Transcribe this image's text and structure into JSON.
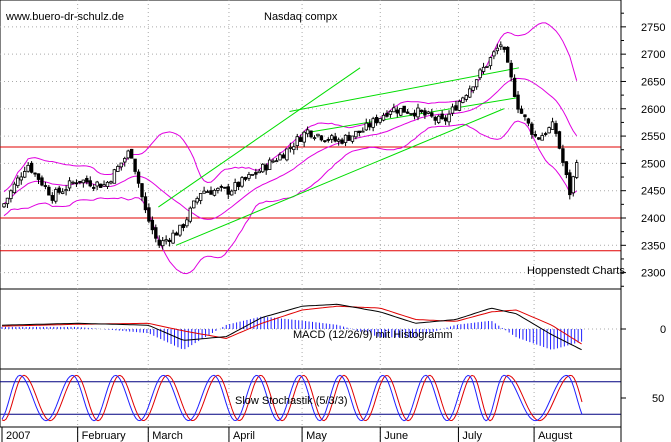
{
  "watermark": "www.buero-dr-schulz.de",
  "title": "Nasdaq compx",
  "source": "Hoppenstedt Charts",
  "macd_label": "MACD (12/26/9) mit Histogramm",
  "stoch_label": "Slow Stochastik (5/3/3)",
  "colors": {
    "candle": "#000000",
    "bollinger": "#e000e0",
    "trendline": "#00dd00",
    "support": "#e00000",
    "macd": "#000000",
    "signal": "#e00000",
    "histogram": "#2020ff",
    "stoch_k": "#2020ff",
    "stoch_d": "#e00000",
    "grid": "#aaaaaa"
  },
  "chart_data": [
    {
      "type": "candlestick",
      "title": "Nasdaq compx",
      "x_labels": [
        "2007",
        "February",
        "March",
        "April",
        "May",
        "June",
        "July",
        "August"
      ],
      "y_ticks": [
        2300,
        2350,
        2400,
        2450,
        2500,
        2550,
        2600,
        2650,
        2700,
        2750
      ],
      "ylim": [
        2270,
        2790
      ],
      "horizontal_lines": [
        2530,
        2400,
        2340
      ],
      "trend_channels": [
        {
          "from": [
            "2007-03-05",
            2420
          ],
          "to": [
            "2007-05-24",
            2675
          ]
        },
        {
          "from": [
            "2007-03-12",
            2350
          ],
          "to": [
            "2007-07-20",
            2600
          ]
        },
        {
          "from": [
            "2007-04-26",
            2595
          ],
          "to": [
            "2007-07-26",
            2675
          ]
        },
        {
          "from": [
            "2007-05-01",
            2555
          ],
          "to": [
            "2007-07-25",
            2620
          ]
        }
      ],
      "series": [
        {
          "date": "2007-01-02",
          "close": 2420
        },
        {
          "date": "2007-01-12",
          "close": 2500
        },
        {
          "date": "2007-01-22",
          "close": 2440
        },
        {
          "date": "2007-02-01",
          "close": 2470
        },
        {
          "date": "2007-02-12",
          "close": 2460
        },
        {
          "date": "2007-02-22",
          "close": 2525
        },
        {
          "date": "2007-02-28",
          "close": 2410
        },
        {
          "date": "2007-03-05",
          "close": 2350
        },
        {
          "date": "2007-03-14",
          "close": 2380
        },
        {
          "date": "2007-03-22",
          "close": 2450
        },
        {
          "date": "2007-04-02",
          "close": 2450
        },
        {
          "date": "2007-04-12",
          "close": 2480
        },
        {
          "date": "2007-04-24",
          "close": 2520
        },
        {
          "date": "2007-05-03",
          "close": 2560
        },
        {
          "date": "2007-05-15",
          "close": 2540
        },
        {
          "date": "2007-05-25",
          "close": 2560
        },
        {
          "date": "2007-06-05",
          "close": 2600
        },
        {
          "date": "2007-06-15",
          "close": 2595
        },
        {
          "date": "2007-06-26",
          "close": 2575
        },
        {
          "date": "2007-07-05",
          "close": 2630
        },
        {
          "date": "2007-07-13",
          "close": 2680
        },
        {
          "date": "2007-07-19",
          "close": 2720
        },
        {
          "date": "2007-07-26",
          "close": 2600
        },
        {
          "date": "2007-08-02",
          "close": 2545
        },
        {
          "date": "2007-08-09",
          "close": 2570
        },
        {
          "date": "2007-08-16",
          "close": 2430
        },
        {
          "date": "2007-08-17",
          "close": 2510
        }
      ]
    },
    {
      "type": "line",
      "title": "MACD (12/26/9) mit Histogramm",
      "y_ticks": [
        0
      ],
      "x": [
        "2007-01-02",
        "2007-02-01",
        "2007-03-01",
        "2007-03-15",
        "2007-04-01",
        "2007-04-15",
        "2007-05-01",
        "2007-05-15",
        "2007-06-01",
        "2007-06-15",
        "2007-07-01",
        "2007-07-15",
        "2007-07-25",
        "2007-08-08",
        "2007-08-20"
      ],
      "series": [
        {
          "values": [
            4,
            6,
            4,
            -12,
            -8,
            12,
            24,
            26,
            18,
            6,
            10,
            22,
            16,
            -6,
            -22
          ]
        },
        {
          "values": [
            3,
            5,
            6,
            -2,
            -10,
            6,
            20,
            24,
            22,
            10,
            8,
            18,
            20,
            4,
            -16
          ]
        }
      ]
    },
    {
      "type": "line",
      "title": "Slow Stochastik (5/3/3)",
      "y_ticks": [
        50
      ],
      "ylim": [
        0,
        100
      ],
      "horizontal_lines": [
        80,
        20
      ],
      "cycle_peaks": [
        "2007-01-09",
        "2007-01-30",
        "2007-02-16",
        "2007-03-07",
        "2007-03-27",
        "2007-04-13",
        "2007-04-30",
        "2007-05-16",
        "2007-06-02",
        "2007-06-19",
        "2007-07-06",
        "2007-07-20",
        "2007-08-14"
      ]
    }
  ]
}
